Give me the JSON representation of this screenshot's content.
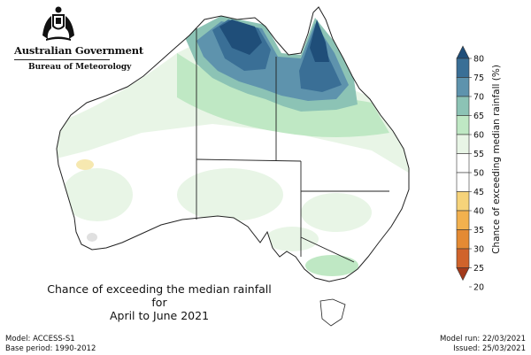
{
  "header": {
    "org_name": "Australian Government",
    "agency_name": "Bureau of Meteorology"
  },
  "map": {
    "title_line1": "Chance of exceeding the median rainfall for",
    "title_line2": "April to June 2021"
  },
  "colorbar": {
    "title": "Chance of exceeding median rainfall (%)",
    "ticks": [
      "80",
      "75",
      "70",
      "65",
      "60",
      "55",
      "50",
      "45",
      "40",
      "35",
      "30",
      "25",
      "20"
    ],
    "colors": [
      "#1f4e79",
      "#3a6f96",
      "#5e93ad",
      "#8cc3b5",
      "#bfe8c4",
      "#e8f5e6",
      "#ffffff",
      "#ffffff",
      "#f6d37a",
      "#f2b14e",
      "#e48a33",
      "#d0632b",
      "#a33a1b"
    ]
  },
  "footer": {
    "model_line": "Model: ACCESS-S1",
    "base_period_line": "Base period: 1990-2012",
    "model_run_line": "Model run: 22/03/2021",
    "issued_line": "Issued: 25/03/2021"
  }
}
